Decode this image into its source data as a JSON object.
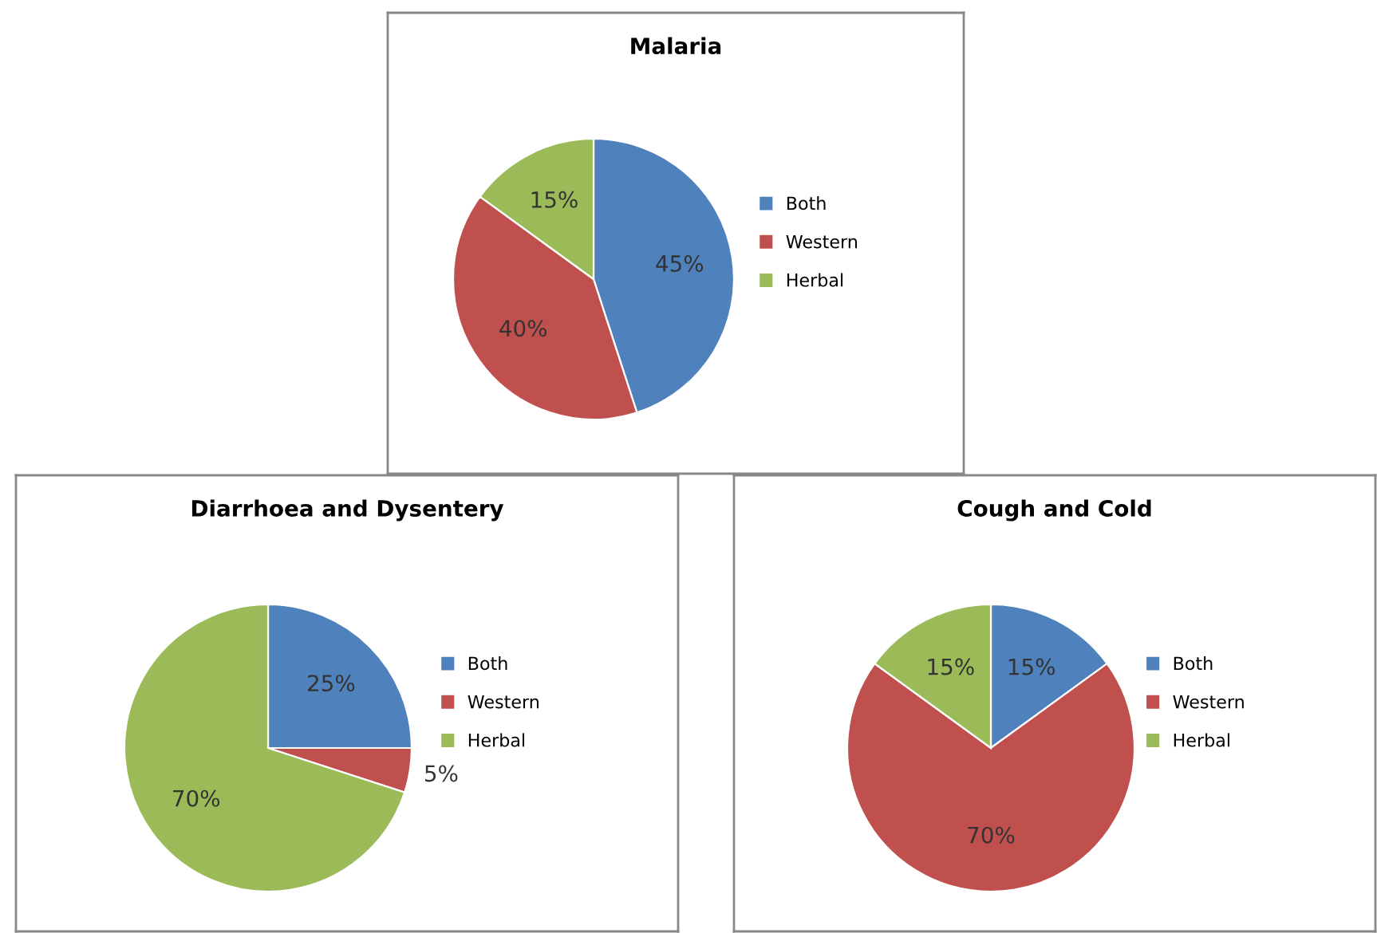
{
  "chart_data": [
    {
      "type": "pie",
      "title": "Malaria",
      "categories": [
        "Both",
        "Western",
        "Herbal"
      ],
      "values": [
        45,
        40,
        15
      ],
      "colors": [
        "#4f81bd",
        "#c0504d",
        "#9bbb59"
      ],
      "value_labels": [
        "45%",
        "40%",
        "15%"
      ],
      "legend": "right"
    },
    {
      "type": "pie",
      "title": "Diarrhoea and Dysentery",
      "categories": [
        "Both",
        "Western",
        "Herbal"
      ],
      "values": [
        25,
        5,
        70
      ],
      "colors": [
        "#4f81bd",
        "#c0504d",
        "#9bbb59"
      ],
      "value_labels": [
        "25%",
        "5%",
        "70%"
      ],
      "legend": "right"
    },
    {
      "type": "pie",
      "title": "Cough and Cold",
      "categories": [
        "Both",
        "Western",
        "Herbal"
      ],
      "values": [
        15,
        70,
        15
      ],
      "colors": [
        "#4f81bd",
        "#c0504d",
        "#9bbb59"
      ],
      "value_labels": [
        "15%",
        "70%",
        "15%"
      ],
      "legend": "right"
    }
  ]
}
